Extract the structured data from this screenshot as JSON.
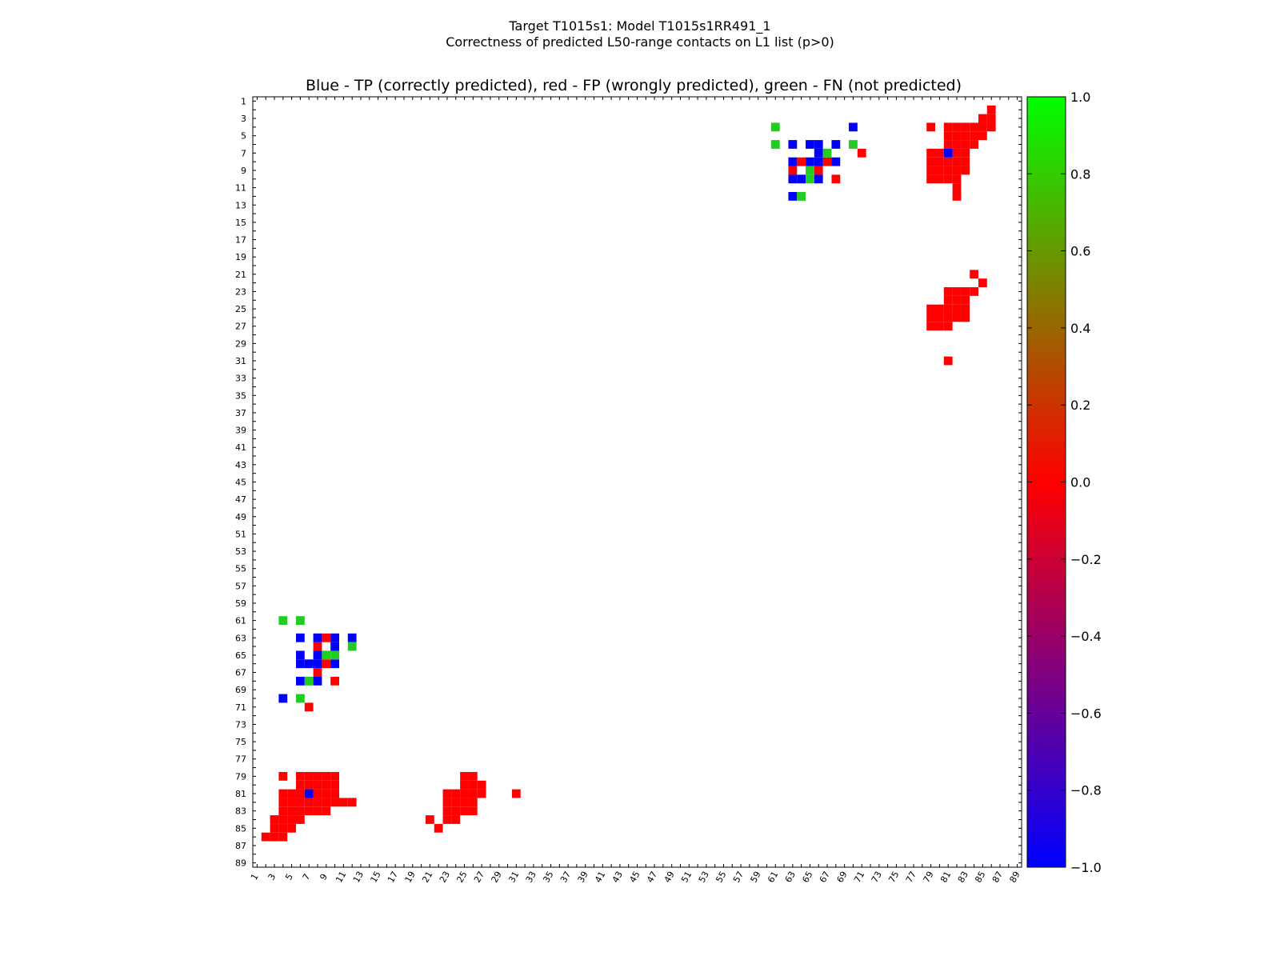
{
  "figure": {
    "title_line1": "Target T1015s1: Model T1015s1RR491_1",
    "title_line2": "Correctness of predicted L50-range contacts on L1 list (p>0)"
  },
  "chart_data": {
    "type": "heatmap",
    "title": "Blue - TP (correctly predicted), red - FP (wrongly predicted), green - FN (not predicted)",
    "xlabel": "",
    "ylabel": "",
    "xlim": [
      1,
      89
    ],
    "ylim": [
      1,
      89
    ],
    "x_ticks": [
      1,
      3,
      5,
      7,
      9,
      11,
      13,
      15,
      17,
      19,
      21,
      23,
      25,
      27,
      29,
      31,
      33,
      35,
      37,
      39,
      41,
      43,
      45,
      47,
      49,
      51,
      53,
      55,
      57,
      59,
      61,
      63,
      65,
      67,
      69,
      71,
      73,
      75,
      77,
      79,
      81,
      83,
      85,
      87,
      89
    ],
    "y_ticks": [
      1,
      3,
      5,
      7,
      9,
      11,
      13,
      15,
      17,
      19,
      21,
      23,
      25,
      27,
      29,
      31,
      33,
      35,
      37,
      39,
      41,
      43,
      45,
      47,
      49,
      51,
      53,
      55,
      57,
      59,
      61,
      63,
      65,
      67,
      69,
      71,
      73,
      75,
      77,
      79,
      81,
      83,
      85,
      87,
      89
    ],
    "colors": {
      "TP": "#0000ff",
      "FP": "#ff0000",
      "FN": "#22cc22"
    },
    "colorbar": {
      "min": -1.0,
      "max": 1.0,
      "ticks": [
        "1.0",
        "0.8",
        "0.6",
        "0.4",
        "0.2",
        "0.0",
        "−0.2",
        "−0.4",
        "−0.6",
        "−0.8",
        "−1.0"
      ],
      "gradient": [
        "#00ff00",
        "#ff0000",
        "#0000ff"
      ]
    },
    "upper_triangle": {
      "FN": [
        [
          4,
          61
        ],
        [
          6,
          61
        ],
        [
          7,
          67
        ],
        [
          6,
          70
        ],
        [
          9,
          65
        ],
        [
          10,
          65
        ],
        [
          12,
          64
        ]
      ],
      "TP": [
        [
          4,
          70
        ],
        [
          6,
          63
        ],
        [
          6,
          65
        ],
        [
          6,
          66
        ],
        [
          6,
          68
        ],
        [
          7,
          66
        ],
        [
          7,
          81
        ],
        [
          8,
          63
        ],
        [
          8,
          65
        ],
        [
          8,
          66
        ],
        [
          8,
          68
        ],
        [
          10,
          63
        ],
        [
          10,
          64
        ],
        [
          10,
          66
        ],
        [
          12,
          63
        ]
      ],
      "FP": [
        [
          2,
          86
        ],
        [
          3,
          85
        ],
        [
          3,
          86
        ],
        [
          4,
          79
        ],
        [
          4,
          81
        ],
        [
          4,
          82
        ],
        [
          4,
          83
        ],
        [
          4,
          84
        ],
        [
          4,
          85
        ],
        [
          4,
          86
        ],
        [
          5,
          81
        ],
        [
          5,
          82
        ],
        [
          5,
          83
        ],
        [
          5,
          84
        ],
        [
          5,
          85
        ],
        [
          6,
          81
        ],
        [
          6,
          82
        ],
        [
          6,
          83
        ],
        [
          6,
          84
        ],
        [
          7,
          71
        ],
        [
          7,
          79
        ],
        [
          7,
          80
        ],
        [
          7,
          82
        ],
        [
          7,
          83
        ],
        [
          8,
          64
        ],
        [
          8,
          67
        ],
        [
          8,
          79
        ],
        [
          8,
          80
        ],
        [
          8,
          81
        ],
        [
          8,
          82
        ],
        [
          8,
          83
        ],
        [
          9,
          63
        ],
        [
          9,
          66
        ],
        [
          9,
          79
        ],
        [
          9,
          80
        ],
        [
          9,
          81
        ],
        [
          9,
          82
        ],
        [
          9,
          83
        ],
        [
          10,
          68
        ],
        [
          10,
          79
        ],
        [
          10,
          80
        ],
        [
          10,
          81
        ],
        [
          10,
          82
        ],
        [
          11,
          82
        ],
        [
          12,
          82
        ],
        [
          21,
          84
        ],
        [
          22,
          85
        ],
        [
          23,
          81
        ],
        [
          23,
          82
        ],
        [
          23,
          83
        ],
        [
          23,
          84
        ],
        [
          24,
          81
        ],
        [
          24,
          82
        ],
        [
          24,
          83
        ],
        [
          25,
          79
        ],
        [
          25,
          80
        ],
        [
          25,
          81
        ],
        [
          25,
          82
        ],
        [
          25,
          83
        ],
        [
          26,
          79
        ],
        [
          26,
          80
        ],
        [
          26,
          81
        ],
        [
          26,
          82
        ],
        [
          26,
          83
        ],
        [
          27,
          79
        ],
        [
          27,
          80
        ],
        [
          27,
          81
        ],
        [
          31,
          81
        ]
      ]
    },
    "lower_triangle": {
      "FN": [
        [
          61,
          4
        ],
        [
          61,
          6
        ],
        [
          64,
          12
        ],
        [
          65,
          9
        ],
        [
          65,
          10
        ],
        [
          68,
          7
        ],
        [
          70,
          6
        ]
      ],
      "TP": [
        [
          63,
          6
        ],
        [
          63,
          8
        ],
        [
          63,
          10
        ],
        [
          63,
          12
        ],
        [
          64,
          10
        ],
        [
          65,
          6
        ],
        [
          65,
          8
        ],
        [
          66,
          6
        ],
        [
          66,
          7
        ],
        [
          66,
          8
        ],
        [
          66,
          10
        ],
        [
          68,
          6
        ],
        [
          68,
          8
        ],
        [
          70,
          4
        ],
        [
          81,
          7
        ]
      ],
      "FP": [
        [
          63,
          9
        ],
        [
          64,
          8
        ],
        [
          66,
          9
        ],
        [
          67,
          8
        ],
        [
          68,
          10
        ],
        [
          71,
          7
        ],
        [
          79,
          4
        ],
        [
          79,
          6
        ],
        [
          79,
          7
        ],
        [
          79,
          8
        ],
        [
          79,
          9
        ],
        [
          79,
          10
        ],
        [
          79,
          25
        ],
        [
          79,
          26
        ],
        [
          80,
          6
        ],
        [
          80,
          7
        ],
        [
          80,
          8
        ],
        [
          80,
          9
        ],
        [
          80,
          10
        ],
        [
          80,
          25
        ],
        [
          80,
          26
        ],
        [
          80,
          27
        ],
        [
          81,
          4
        ],
        [
          81,
          5
        ],
        [
          81,
          6
        ],
        [
          81,
          8
        ],
        [
          81,
          9
        ],
        [
          81,
          10
        ],
        [
          81,
          23
        ],
        [
          81,
          24
        ],
        [
          81,
          25
        ],
        [
          81,
          26
        ],
        [
          81,
          27
        ],
        [
          81,
          31
        ],
        [
          82,
          4
        ],
        [
          82,
          5
        ],
        [
          82,
          6
        ],
        [
          82,
          7
        ],
        [
          82,
          8
        ],
        [
          82,
          9
        ],
        [
          82,
          10
        ],
        [
          82,
          11
        ],
        [
          82,
          12
        ],
        [
          82,
          23
        ],
        [
          82,
          24
        ],
        [
          82,
          25
        ],
        [
          82,
          26
        ],
        [
          83,
          4
        ],
        [
          83,
          5
        ],
        [
          83,
          6
        ],
        [
          83,
          7
        ],
        [
          83,
          8
        ],
        [
          83,
          9
        ],
        [
          83,
          23
        ],
        [
          83,
          24
        ],
        [
          83,
          25
        ],
        [
          83,
          26
        ],
        [
          84,
          3
        ],
        [
          84,
          4
        ],
        [
          84,
          5
        ],
        [
          84,
          6
        ],
        [
          84,
          21
        ],
        [
          84,
          23
        ],
        [
          84,
          24
        ],
        [
          85,
          3
        ],
        [
          85,
          4
        ],
        [
          85,
          5
        ],
        [
          85,
          22
        ],
        [
          86,
          2
        ],
        [
          86,
          3
        ],
        [
          86,
          4
        ]
      ]
    }
  }
}
